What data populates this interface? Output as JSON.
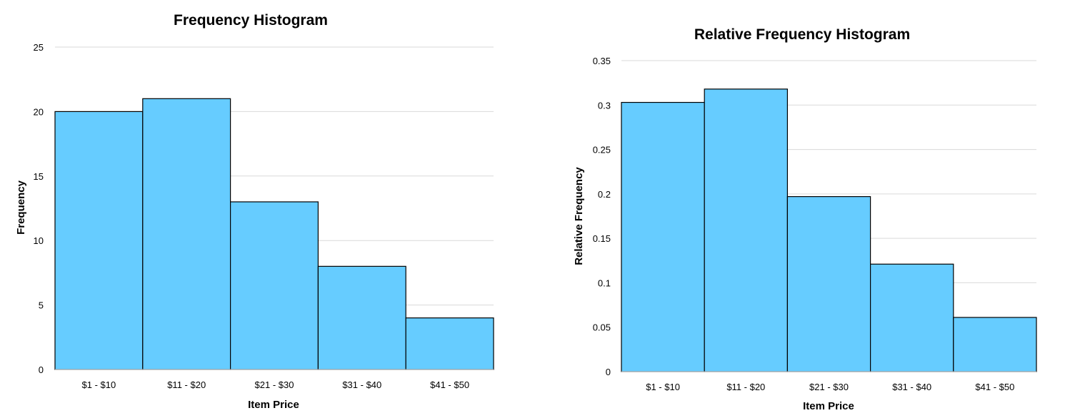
{
  "chart_data": [
    {
      "type": "bar",
      "title": "Frequency Histogram",
      "xlabel": "Item Price",
      "ylabel": "Frequency",
      "categories": [
        "$1 - $10",
        "$11 - $20",
        "$21 - $30",
        "$31 - $40",
        "$41 - $50"
      ],
      "values": [
        20,
        21,
        13,
        8,
        4
      ],
      "ylim": [
        0,
        25
      ],
      "yticks": [
        "0",
        "5",
        "10",
        "15",
        "20",
        "25"
      ],
      "ytick_values": [
        0,
        5,
        10,
        15,
        20,
        25
      ],
      "grid": true,
      "legend": "none",
      "bar_color": "#66CCFF"
    },
    {
      "type": "bar",
      "title": "Relative Frequency Histogram",
      "xlabel": "Item Price",
      "ylabel": "Relative Frequency",
      "categories": [
        "$1 - $10",
        "$11 - $20",
        "$21 - $30",
        "$31 - $40",
        "$41 - $50"
      ],
      "values": [
        0.303,
        0.318,
        0.197,
        0.121,
        0.061
      ],
      "ylim": [
        0,
        0.35
      ],
      "yticks": [
        "0",
        "0.05",
        "0.1",
        "0.15",
        "0.2",
        "0.25",
        "0.3",
        "0.35"
      ],
      "ytick_values": [
        0,
        0.05,
        0.1,
        0.15,
        0.2,
        0.25,
        0.3,
        0.35
      ],
      "grid": true,
      "legend": "none",
      "bar_color": "#66CCFF"
    }
  ]
}
